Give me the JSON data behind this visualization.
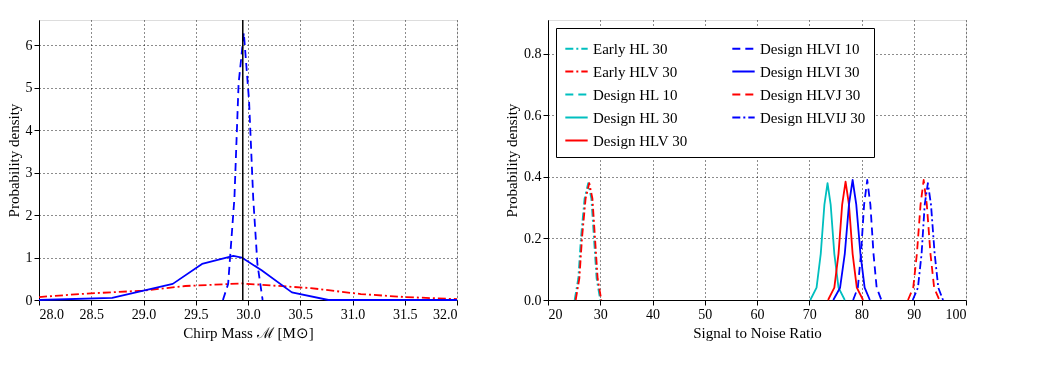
{
  "chart_data": [
    {
      "type": "line",
      "xlabel": "Chirp Mass ℳ [M⊙]",
      "ylabel": "Probability density",
      "xlim": [
        28.0,
        32.0
      ],
      "ylim": [
        0,
        6.6
      ],
      "xticks": [
        {
          "value": 28,
          "label": "28.0"
        },
        {
          "value": 28.5,
          "label": "28.5"
        },
        {
          "value": 29,
          "label": "29.0"
        },
        {
          "value": 29.5,
          "label": "29.5"
        },
        {
          "value": 30,
          "label": "30.0"
        },
        {
          "value": 30.5,
          "label": "30.5"
        },
        {
          "value": 31,
          "label": "31.0"
        },
        {
          "value": 31.5,
          "label": "31.5"
        },
        {
          "value": 32,
          "label": "32.0"
        }
      ],
      "yticks": [
        0,
        1,
        2,
        3,
        4,
        5,
        6
      ],
      "grid": true,
      "series": [
        {
          "color": "#ff0000",
          "line_style": "dashdot",
          "x": [
            28.0,
            28.45,
            28.99,
            29.4,
            29.94,
            30.6,
            31.08,
            31.5,
            32.0
          ],
          "values": [
            0.07,
            0.15,
            0.22,
            0.33,
            0.39,
            0.28,
            0.14,
            0.07,
            0.02
          ]
        },
        {
          "color": "#0000ff",
          "line_style": "solid",
          "x": [
            28.0,
            28.7,
            29.28,
            29.56,
            29.86,
            29.94,
            30.13,
            30.42,
            30.77,
            32.0
          ],
          "values": [
            0,
            0.05,
            0.38,
            0.85,
            1.04,
            1.0,
            0.7,
            0.18,
            0,
            0
          ]
        },
        {
          "color": "#0000ff",
          "line_style": "dashed",
          "x": [
            29.76,
            29.81,
            29.87,
            29.91,
            29.96,
            30.01,
            30.05,
            30.09,
            30.14
          ],
          "values": [
            0,
            0.38,
            2.4,
            5.1,
            6.3,
            4.7,
            2.4,
            0.85,
            0
          ]
        }
      ],
      "ref_lines": [
        {
          "axis": "x",
          "value": 29.95,
          "color": "#000000",
          "line_style": "solid"
        }
      ]
    },
    {
      "type": "line",
      "xlabel": "Signal to Noise Ratio",
      "ylabel": "Probability density",
      "xlim": [
        20,
        100
      ],
      "ylim": [
        0,
        0.91
      ],
      "xticks": [
        20,
        30,
        40,
        50,
        60,
        70,
        80,
        90,
        100
      ],
      "yticks": [
        {
          "value": 0,
          "label": "0.0"
        },
        {
          "value": 0.2,
          "label": "0.2"
        },
        {
          "value": 0.4,
          "label": "0.4"
        },
        {
          "value": 0.6,
          "label": "0.6"
        },
        {
          "value": 0.8,
          "label": "0.8"
        }
      ],
      "grid": true,
      "legend": "top",
      "series": [
        {
          "name": "Early HL 30",
          "color": "#00bfbf",
          "line_style": "dashdot",
          "x": [
            25.1,
            25.8,
            26.3,
            27.0,
            27.7,
            28.3,
            28.8,
            29.3,
            30.0
          ],
          "values": [
            0,
            0.07,
            0.2,
            0.33,
            0.38,
            0.33,
            0.2,
            0.07,
            0
          ]
        },
        {
          "name": "Early HLV 30",
          "color": "#ff0000",
          "line_style": "dashdot",
          "x": [
            25.3,
            26.0,
            26.5,
            27.2,
            27.9,
            28.5,
            29.0,
            29.5,
            30.2
          ],
          "values": [
            0,
            0.07,
            0.2,
            0.33,
            0.38,
            0.33,
            0.2,
            0.07,
            0
          ]
        },
        {
          "name": "Design HL 10",
          "color": "#00bfbf",
          "line_style": "dashed"
        },
        {
          "name": "Design HL 30",
          "color": "#00bfbf",
          "line_style": "solid",
          "x": [
            70.2,
            71.4,
            72.2,
            72.9,
            73.5,
            74.1,
            74.8,
            75.6,
            76.8
          ],
          "values": [
            0,
            0.04,
            0.15,
            0.31,
            0.38,
            0.31,
            0.15,
            0.04,
            0
          ]
        },
        {
          "name": "Design HLV 30",
          "color": "#ff0000",
          "line_style": "solid",
          "x": [
            73.6,
            74.8,
            75.6,
            76.3,
            76.95,
            77.6,
            78.3,
            79.1,
            80.3
          ],
          "values": [
            0,
            0.04,
            0.15,
            0.31,
            0.385,
            0.31,
            0.15,
            0.04,
            0
          ]
        },
        {
          "name": "Design HLVI 10",
          "color": "#0000ff",
          "line_style": "dashed",
          "x": [
            78.4,
            79.3,
            79.9,
            80.5,
            81.1,
            81.7,
            82.3,
            82.9,
            83.8
          ],
          "values": [
            0,
            0.04,
            0.15,
            0.31,
            0.39,
            0.31,
            0.15,
            0.04,
            0
          ]
        },
        {
          "name": "Design HLVI 30",
          "color": "#0000ff",
          "line_style": "solid",
          "x": [
            74.6,
            75.9,
            76.8,
            77.6,
            78.3,
            79.0,
            79.8,
            80.6,
            81.6
          ],
          "values": [
            0,
            0.04,
            0.15,
            0.31,
            0.39,
            0.31,
            0.15,
            0.04,
            0
          ]
        },
        {
          "name": "Design HLVJ 30",
          "color": "#ff0000",
          "line_style": "dashed",
          "x": [
            88.9,
            89.9,
            90.6,
            91.3,
            91.9,
            92.5,
            93.2,
            93.9,
            94.9
          ],
          "values": [
            0,
            0.04,
            0.15,
            0.31,
            0.39,
            0.31,
            0.15,
            0.04,
            0
          ]
        },
        {
          "name": "Design HLVIJ 30",
          "color": "#0000ff",
          "line_style": "dashdot",
          "x": [
            89.8,
            90.8,
            91.5,
            92.1,
            92.7,
            93.3,
            94.0,
            94.7,
            95.6
          ],
          "values": [
            0,
            0.04,
            0.15,
            0.31,
            0.38,
            0.31,
            0.15,
            0.04,
            0
          ]
        }
      ]
    }
  ]
}
